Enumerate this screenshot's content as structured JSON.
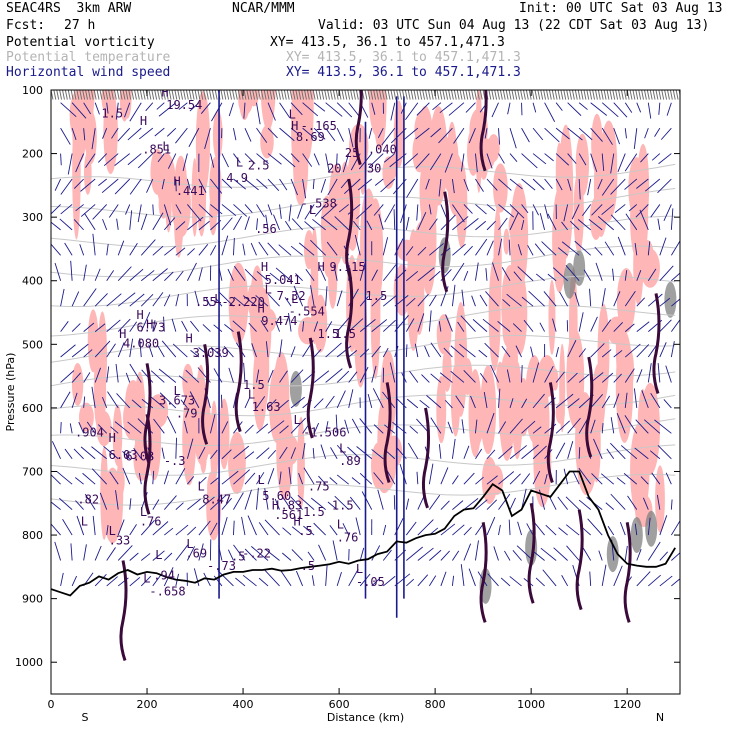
{
  "header": {
    "project": "SEAC4RS  3km ARW",
    "center": "NCAR/MMM",
    "init": "Init: 00 UTC Sat 03 Aug 13",
    "fcst_label": "Fcst:",
    "fcst_value": "27 h",
    "valid": "Valid: 03 UTC Sun 04 Aug 13 (22 CDT Sat 03 Aug 13)"
  },
  "fields": [
    {
      "name": "Potential vorticity",
      "xy": "XY= 413.5, 36.1 to 457.1,471.3",
      "color": "#000000"
    },
    {
      "name": "Potential temperature",
      "xy": "XY= 413.5, 36.1 to 457.1,471.3",
      "color": "#b4b4b4"
    },
    {
      "name": "Horizontal wind speed",
      "xy": "XY= 413.5, 36.1 to 457.1,471.3",
      "color": "#1a1a8c"
    }
  ],
  "chart_data": {
    "type": "cross-section",
    "xlabel": "Distance (km)",
    "ylabel": "Pressure (hPa)",
    "xlim": [
      0,
      1310
    ],
    "ylim": [
      1050,
      100
    ],
    "x_ticks": [
      0,
      200,
      400,
      600,
      800,
      1000,
      1200
    ],
    "y_ticks": [
      100,
      200,
      300,
      400,
      500,
      600,
      700,
      800,
      900,
      1000
    ],
    "x_end_labels": {
      "left": "S",
      "right": "N"
    },
    "colors": {
      "shading_light": "#ffb6b6",
      "shading_dark": "#808080",
      "pv_contour": "#3a0a3a",
      "theta_contour": "#c8c8c8",
      "wind_vectors": "#1a1a8c",
      "terrain": "#000000"
    },
    "terrain": {
      "x": [
        0,
        20,
        40,
        60,
        80,
        100,
        120,
        140,
        160,
        180,
        200,
        220,
        240,
        260,
        280,
        300,
        320,
        340,
        360,
        380,
        400,
        420,
        440,
        460,
        480,
        500,
        520,
        540,
        560,
        580,
        600,
        620,
        640,
        660,
        680,
        700,
        720,
        740,
        760,
        780,
        800,
        820,
        840,
        860,
        880,
        900,
        920,
        940,
        960,
        980,
        1000,
        1020,
        1040,
        1060,
        1080,
        1100,
        1120,
        1140,
        1160,
        1180,
        1200,
        1220,
        1240,
        1260,
        1280,
        1300
      ],
      "p": [
        885,
        890,
        895,
        880,
        875,
        865,
        870,
        860,
        855,
        862,
        858,
        860,
        866,
        870,
        872,
        875,
        868,
        870,
        862,
        858,
        858,
        855,
        855,
        853,
        856,
        855,
        852,
        850,
        848,
        846,
        842,
        845,
        840,
        838,
        830,
        826,
        810,
        812,
        805,
        800,
        798,
        790,
        770,
        760,
        758,
        740,
        720,
        730,
        770,
        760,
        730,
        735,
        740,
        720,
        700,
        700,
        740,
        760,
        800,
        830,
        845,
        848,
        850,
        850,
        845,
        820
      ]
    },
    "labels": [
      {
        "text": "H",
        "x": 142,
        "p": 490
      },
      {
        "text": "4.080",
        "x": 150,
        "p": 505
      },
      {
        "text": "H",
        "x": 198,
        "p": 475
      },
      {
        "text": "6.03",
        "x": 155,
        "p": 683
      },
      {
        "text": "H",
        "x": 120,
        "p": 654
      },
      {
        "text": "6.03",
        "x": 120,
        "p": 680
      },
      {
        "text": "H",
        "x": 178,
        "p": 460
      },
      {
        "text": "6.73",
        "x": 178,
        "p": 480
      },
      {
        "text": "1.5",
        "x": 105,
        "p": 143
      },
      {
        "text": "H",
        "x": 185,
        "p": 155
      },
      {
        "text": ".851",
        "x": 190,
        "p": 200
      },
      {
        "text": "H",
        "x": 230,
        "p": 110
      },
      {
        "text": "19.54",
        "x": 240,
        "p": 130
      },
      {
        "text": ".441",
        "x": 260,
        "p": 265
      },
      {
        "text": "H",
        "x": 255,
        "p": 250
      },
      {
        "text": "L",
        "x": 232,
        "p": 195
      },
      {
        "text": "3.673",
        "x": 225,
        "p": 595
      },
      {
        "text": "L",
        "x": 255,
        "p": 580
      },
      {
        "text": ".79",
        "x": 260,
        "p": 615
      },
      {
        "text": "H",
        "x": 280,
        "p": 497
      },
      {
        "text": "3.039",
        "x": 295,
        "p": 520
      },
      {
        "text": "L",
        "x": 445,
        "p": 420
      },
      {
        "text": ".55",
        "x": 300,
        "p": 440
      },
      {
        "text": "L",
        "x": 340,
        "p": 435
      },
      {
        "text": "-2.220",
        "x": 355,
        "p": 440
      },
      {
        "text": "H",
        "x": 430,
        "p": 450
      },
      {
        "text": "9.474",
        "x": 438,
        "p": 470
      },
      {
        "text": "L",
        "x": 385,
        "p": 220
      },
      {
        "text": "4.9",
        "x": 365,
        "p": 245
      },
      {
        "text": "H",
        "x": 437,
        "p": 385
      },
      {
        "text": "5.041",
        "x": 445,
        "p": 405
      },
      {
        "text": "7.32",
        "x": 470,
        "p": 430
      },
      {
        "text": "L",
        "x": 500,
        "p": 435
      },
      {
        "text": "-.554",
        "x": 495,
        "p": 455
      },
      {
        "text": "L",
        "x": 537,
        "p": 295
      },
      {
        "text": "-.538",
        "x": 520,
        "p": 285
      },
      {
        "text": "L",
        "x": 495,
        "p": 145
      },
      {
        "text": "H",
        "x": 500,
        "p": 163
      },
      {
        "text": "8.69",
        "x": 510,
        "p": 180
      },
      {
        "text": "-.165",
        "x": 520,
        "p": 163
      },
      {
        "text": "L",
        "x": 505,
        "p": 625
      },
      {
        "text": "-1.506",
        "x": 525,
        "p": 645
      },
      {
        "text": "L",
        "x": 410,
        "p": 585
      },
      {
        "text": "1.63",
        "x": 418,
        "p": 605
      },
      {
        "text": "1.5",
        "x": 400,
        "p": 570
      },
      {
        "text": "L",
        "x": 430,
        "p": 720
      },
      {
        "text": "5.60",
        "x": 440,
        "p": 745
      },
      {
        "text": "L",
        "x": 305,
        "p": 730
      },
      {
        "text": "8.47",
        "x": 315,
        "p": 750
      },
      {
        "text": "L",
        "x": 282,
        "p": 820
      },
      {
        "text": ".69",
        "x": 280,
        "p": 835
      },
      {
        "text": "L",
        "x": 217,
        "p": 838
      },
      {
        "text": ".94",
        "x": 213,
        "p": 870
      },
      {
        "text": "L",
        "x": 192,
        "p": 875
      },
      {
        "text": "-.658",
        "x": 205,
        "p": 895
      },
      {
        "text": "L",
        "x": 185,
        "p": 770
      },
      {
        "text": ".76",
        "x": 185,
        "p": 785
      },
      {
        "text": "L",
        "x": 120,
        "p": 800
      },
      {
        "text": ".33",
        "x": 120,
        "p": 815
      },
      {
        "text": "L",
        "x": 62,
        "p": 785
      },
      {
        "text": ".82",
        "x": 55,
        "p": 750
      },
      {
        "text": ".904",
        "x": 50,
        "p": 645
      },
      {
        "text": "-.73",
        "x": 325,
        "p": 855
      },
      {
        "text": ".5",
        "x": 375,
        "p": 840
      },
      {
        "text": "-.22",
        "x": 398,
        "p": 835
      },
      {
        "text": "H",
        "x": 460,
        "p": 760
      },
      {
        "text": ".561",
        "x": 465,
        "p": 775
      },
      {
        "text": ".83",
        "x": 478,
        "p": 760
      },
      {
        "text": "H",
        "x": 505,
        "p": 785
      },
      {
        "text": ".5",
        "x": 515,
        "p": 800
      },
      {
        "text": ".5",
        "x": 520,
        "p": 855
      },
      {
        "text": "1.5",
        "x": 525,
        "p": 770
      },
      {
        "text": ".75",
        "x": 535,
        "p": 730
      },
      {
        "text": "H",
        "x": 555,
        "p": 385
      },
      {
        "text": "9.115",
        "x": 580,
        "p": 385
      },
      {
        "text": "1.5",
        "x": 555,
        "p": 490
      },
      {
        "text": "1.5",
        "x": 590,
        "p": 490
      },
      {
        "text": "L",
        "x": 600,
        "p": 670
      },
      {
        "text": ".89",
        "x": 600,
        "p": 690
      },
      {
        "text": "1.5",
        "x": 585,
        "p": 760
      },
      {
        "text": "L",
        "x": 595,
        "p": 790
      },
      {
        "text": ".76",
        "x": 595,
        "p": 810
      },
      {
        "text": "L",
        "x": 635,
        "p": 860
      },
      {
        "text": "-.05",
        "x": 635,
        "p": 880
      },
      {
        "text": "1.5",
        "x": 655,
        "p": 430
      },
      {
        "text": ".040",
        "x": 660,
        "p": 200
      },
      {
        "text": "20",
        "x": 575,
        "p": 230
      },
      {
        "text": "25",
        "x": 612,
        "p": 205
      },
      {
        "text": "30",
        "x": 658,
        "p": 230
      },
      {
        "text": ".56",
        "x": 425,
        "p": 325
      },
      {
        "text": "2.5",
        "x": 410,
        "p": 225
      },
      {
        "text": "-.3",
        "x": 235,
        "p": 690
      }
    ]
  }
}
